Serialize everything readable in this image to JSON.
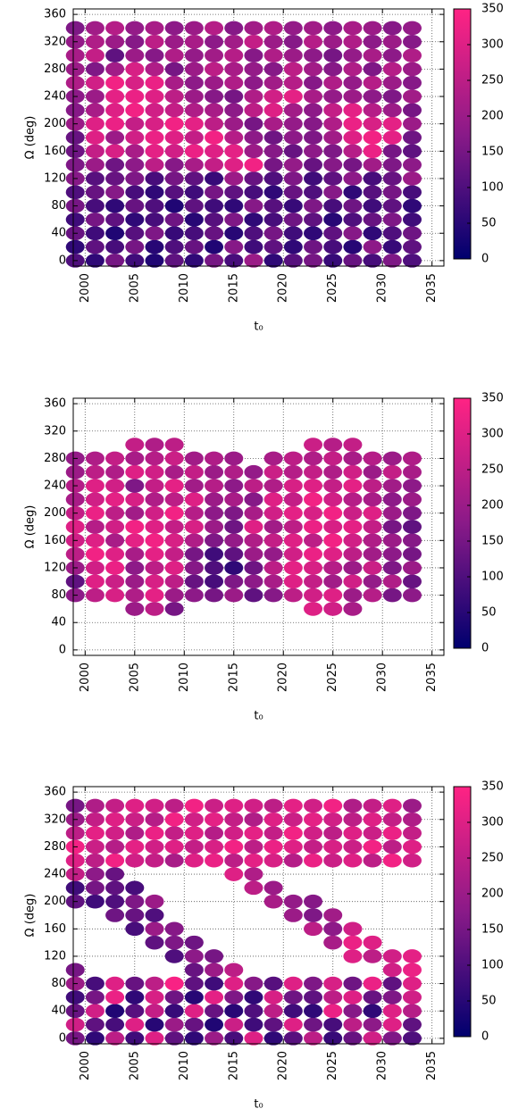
{
  "chart_data": [
    {
      "type": "scatter",
      "xlabel": "t₀",
      "ylabel": "Ω (deg)",
      "grid": true,
      "xlim": [
        1998.8,
        2036.2
      ],
      "ylim": [
        -8,
        368
      ],
      "xticks": [
        2000,
        2005,
        2010,
        2015,
        2020,
        2025,
        2030,
        2035
      ],
      "yticks": [
        0,
        40,
        80,
        120,
        160,
        200,
        240,
        280,
        320,
        360
      ],
      "colorbar": {
        "lim": [
          0,
          350
        ],
        "ticks": [
          0,
          50,
          100,
          150,
          200,
          250,
          300,
          350
        ],
        "colors": [
          "#00006e",
          "#8a1a88",
          "#ff2384"
        ]
      },
      "x": [
        1999,
        2001,
        2003,
        2005,
        2007,
        2009,
        2011,
        2013,
        2015,
        2017,
        2019,
        2021,
        2023,
        2025,
        2027,
        2029,
        2031,
        2033
      ],
      "y": [
        0,
        20,
        40,
        60,
        80,
        100,
        120,
        140,
        160,
        180,
        200,
        220,
        240,
        260,
        280,
        300,
        320,
        340
      ],
      "values": [
        [
          100,
          60,
          150,
          80,
          40,
          120,
          60,
          150,
          90,
          200,
          60,
          110,
          150,
          70,
          130,
          90,
          160,
          100
        ],
        [
          60,
          120,
          90,
          150,
          50,
          100,
          130,
          40,
          170,
          80,
          120,
          60,
          140,
          90,
          50,
          180,
          70,
          120
        ],
        [
          130,
          80,
          40,
          110,
          160,
          70,
          90,
          130,
          50,
          100,
          150,
          80,
          60,
          120,
          170,
          60,
          100,
          140
        ],
        [
          80,
          150,
          120,
          60,
          90,
          140,
          50,
          110,
          160,
          60,
          90,
          140,
          120,
          50,
          100,
          130,
          160,
          80
        ],
        [
          150,
          90,
          60,
          130,
          100,
          40,
          120,
          80,
          60,
          170,
          110,
          70,
          160,
          90,
          140,
          80,
          120,
          60
        ],
        [
          100,
          130,
          170,
          90,
          60,
          110,
          80,
          150,
          120,
          90,
          60,
          130,
          100,
          170,
          60,
          110,
          150,
          90
        ],
        [
          170,
          110,
          130,
          160,
          90,
          150,
          120,
          70,
          200,
          130,
          100,
          160,
          80,
          120,
          180,
          90,
          130,
          200
        ],
        [
          160,
          200,
          140,
          180,
          250,
          170,
          220,
          260,
          300,
          330,
          150,
          190,
          130,
          170,
          150,
          210,
          160,
          180
        ],
        [
          140,
          260,
          290,
          220,
          310,
          280,
          320,
          300,
          310,
          200,
          170,
          130,
          180,
          160,
          240,
          320,
          150,
          120
        ],
        [
          130,
          300,
          200,
          280,
          320,
          300,
          260,
          330,
          240,
          180,
          140,
          180,
          160,
          210,
          300,
          330,
          310,
          140
        ],
        [
          200,
          300,
          320,
          260,
          290,
          330,
          310,
          250,
          200,
          150,
          220,
          190,
          170,
          230,
          320,
          290,
          310,
          200
        ],
        [
          170,
          220,
          300,
          330,
          280,
          260,
          230,
          220,
          180,
          250,
          300,
          210,
          180,
          260,
          310,
          240,
          200,
          150
        ],
        [
          180,
          200,
          310,
          320,
          300,
          250,
          200,
          170,
          150,
          230,
          280,
          310,
          220,
          190,
          200,
          180,
          160,
          210
        ],
        [
          230,
          280,
          330,
          290,
          320,
          220,
          180,
          200,
          230,
          180,
          210,
          240,
          170,
          230,
          190,
          240,
          200,
          170
        ],
        [
          200,
          160,
          210,
          290,
          230,
          150,
          200,
          250,
          220,
          190,
          170,
          250,
          210,
          170,
          230,
          160,
          240,
          200
        ],
        [
          220,
          260,
          120,
          200,
          170,
          230,
          190,
          210,
          240,
          170,
          230,
          200,
          180,
          150,
          190,
          220,
          180,
          230
        ],
        [
          190,
          230,
          200,
          170,
          250,
          200,
          220,
          180,
          210,
          260,
          200,
          170,
          240,
          200,
          230,
          180,
          200,
          170
        ],
        [
          160,
          210,
          240,
          190,
          220,
          180,
          200,
          240,
          170,
          210,
          230,
          190,
          210,
          180,
          220,
          200,
          170,
          190
        ]
      ]
    },
    {
      "type": "scatter",
      "xlabel": "t₀",
      "ylabel": "Ω (deg)",
      "grid": true,
      "xlim": [
        1998.8,
        2036.2
      ],
      "ylim": [
        -8,
        368
      ],
      "xticks": [
        2000,
        2005,
        2010,
        2015,
        2020,
        2025,
        2030,
        2035
      ],
      "yticks": [
        0,
        40,
        80,
        120,
        160,
        200,
        240,
        280,
        320,
        360
      ],
      "colorbar": {
        "lim": [
          0,
          350
        ],
        "ticks": [
          0,
          50,
          100,
          150,
          200,
          250,
          300,
          350
        ],
        "colors": [
          "#00006e",
          "#8a1a88",
          "#ff2384"
        ]
      },
      "x": [
        1999,
        2001,
        2003,
        2005,
        2007,
        2009,
        2011,
        2013,
        2015,
        2017,
        2019,
        2021,
        2023,
        2025,
        2027,
        2029,
        2031,
        2033
      ],
      "y": [
        0,
        20,
        40,
        60,
        80,
        100,
        120,
        140,
        160,
        180,
        200,
        220,
        240,
        260,
        280,
        300,
        320,
        340
      ],
      "values": [
        [
          null,
          null,
          null,
          null,
          null,
          null,
          null,
          null,
          null,
          null,
          null,
          null,
          null,
          null,
          null,
          null,
          null,
          null
        ],
        [
          null,
          null,
          null,
          null,
          null,
          null,
          null,
          null,
          null,
          null,
          null,
          null,
          null,
          null,
          null,
          null,
          null,
          null
        ],
        [
          null,
          null,
          null,
          null,
          null,
          null,
          null,
          null,
          null,
          null,
          null,
          null,
          null,
          null,
          null,
          null,
          null,
          null
        ],
        [
          null,
          null,
          null,
          200,
          250,
          150,
          null,
          null,
          null,
          null,
          null,
          null,
          300,
          280,
          220,
          null,
          null,
          null
        ],
        [
          180,
          250,
          290,
          230,
          310,
          200,
          180,
          150,
          200,
          120,
          170,
          250,
          280,
          300,
          200,
          240,
          150,
          180
        ],
        [
          120,
          300,
          270,
          200,
          290,
          250,
          130,
          90,
          160,
          180,
          220,
          300,
          260,
          210,
          280,
          190,
          230,
          130
        ],
        [
          200,
          280,
          320,
          180,
          250,
          300,
          170,
          100,
          60,
          140,
          250,
          310,
          290,
          240,
          200,
          270,
          160,
          200
        ],
        [
          250,
          330,
          300,
          220,
          310,
          260,
          150,
          80,
          120,
          200,
          190,
          280,
          320,
          300,
          250,
          210,
          180,
          150
        ],
        [
          280,
          300,
          220,
          310,
          330,
          290,
          230,
          160,
          190,
          230,
          260,
          300,
          250,
          330,
          280,
          230,
          200,
          170
        ],
        [
          300,
          240,
          280,
          330,
          300,
          260,
          290,
          200,
          140,
          300,
          210,
          250,
          320,
          290,
          310,
          260,
          150,
          120
        ],
        [
          260,
          320,
          250,
          210,
          280,
          330,
          240,
          180,
          160,
          220,
          280,
          310,
          290,
          330,
          270,
          300,
          200,
          160
        ],
        [
          220,
          280,
          310,
          290,
          230,
          250,
          300,
          200,
          220,
          170,
          300,
          260,
          330,
          280,
          240,
          220,
          180,
          200
        ],
        [
          240,
          300,
          280,
          160,
          260,
          310,
          210,
          240,
          180,
          250,
          230,
          290,
          300,
          260,
          310,
          250,
          210,
          180
        ],
        [
          200,
          250,
          230,
          300,
          280,
          220,
          260,
          200,
          230,
          190,
          270,
          240,
          260,
          230,
          280,
          200,
          260,
          220
        ],
        [
          190,
          230,
          260,
          220,
          240,
          270,
          210,
          230,
          200,
          null,
          220,
          250,
          230,
          260,
          220,
          240,
          200,
          230
        ],
        [
          null,
          null,
          null,
          260,
          230,
          250,
          null,
          null,
          null,
          null,
          null,
          null,
          270,
          240,
          260,
          null,
          null,
          null
        ],
        [
          null,
          null,
          null,
          null,
          null,
          null,
          null,
          null,
          null,
          null,
          null,
          null,
          null,
          null,
          null,
          null,
          null,
          null
        ],
        [
          null,
          null,
          null,
          null,
          null,
          null,
          null,
          null,
          null,
          null,
          null,
          null,
          null,
          null,
          null,
          null,
          null,
          null
        ]
      ]
    },
    {
      "type": "scatter",
      "xlabel": "t₀",
      "ylabel": "Ω (deg)",
      "grid": true,
      "xlim": [
        1998.8,
        2036.2
      ],
      "ylim": [
        -8,
        368
      ],
      "xticks": [
        2000,
        2005,
        2010,
        2015,
        2020,
        2025,
        2030,
        2035
      ],
      "yticks": [
        0,
        40,
        80,
        120,
        160,
        200,
        240,
        280,
        320,
        360
      ],
      "colorbar": {
        "lim": [
          0,
          350
        ],
        "ticks": [
          0,
          50,
          100,
          150,
          200,
          250,
          300,
          350
        ],
        "colors": [
          "#00006e",
          "#8a1a88",
          "#ff2384"
        ]
      },
      "x": [
        1999,
        2001,
        2003,
        2005,
        2007,
        2009,
        2011,
        2013,
        2015,
        2017,
        2019,
        2021,
        2023,
        2025,
        2027,
        2029,
        2031,
        2033
      ],
      "y": [
        0,
        20,
        40,
        60,
        80,
        100,
        120,
        140,
        160,
        180,
        200,
        220,
        240,
        260,
        280,
        300,
        320,
        340
      ],
      "values": [
        [
          150,
          60,
          250,
          80,
          300,
          120,
          60,
          200,
          90,
          300,
          60,
          110,
          250,
          70,
          130,
          280,
          160,
          100
        ],
        [
          280,
          120,
          90,
          300,
          50,
          200,
          130,
          40,
          270,
          80,
          120,
          300,
          140,
          90,
          250,
          180,
          300,
          120
        ],
        [
          130,
          280,
          40,
          110,
          260,
          70,
          300,
          130,
          50,
          100,
          250,
          80,
          60,
          320,
          170,
          60,
          300,
          240
        ],
        [
          80,
          150,
          320,
          60,
          290,
          140,
          50,
          310,
          160,
          60,
          290,
          140,
          120,
          250,
          300,
          130,
          160,
          280
        ],
        [
          200,
          90,
          300,
          130,
          250,
          340,
          120,
          80,
          300,
          170,
          110,
          300,
          160,
          290,
          140,
          320,
          120,
          300
        ],
        [
          150,
          null,
          null,
          null,
          null,
          null,
          130,
          200,
          250,
          null,
          null,
          null,
          null,
          null,
          null,
          null,
          280,
          320
        ],
        [
          null,
          null,
          null,
          null,
          null,
          100,
          180,
          150,
          null,
          null,
          null,
          null,
          null,
          null,
          300,
          250,
          280,
          310
        ],
        [
          null,
          null,
          null,
          null,
          120,
          160,
          140,
          null,
          null,
          null,
          null,
          null,
          null,
          220,
          320,
          300,
          null,
          null
        ],
        [
          null,
          null,
          null,
          90,
          200,
          170,
          null,
          null,
          null,
          null,
          null,
          null,
          250,
          180,
          280,
          null,
          null,
          null
        ],
        [
          null,
          null,
          140,
          130,
          100,
          null,
          null,
          null,
          null,
          null,
          null,
          200,
          160,
          210,
          null,
          null,
          null,
          null
        ],
        [
          120,
          80,
          100,
          160,
          200,
          null,
          null,
          null,
          null,
          null,
          220,
          190,
          170,
          null,
          null,
          null,
          null,
          null
        ],
        [
          80,
          150,
          120,
          90,
          null,
          null,
          null,
          null,
          null,
          250,
          200,
          null,
          null,
          null,
          null,
          null,
          null,
          null
        ],
        [
          260,
          180,
          130,
          null,
          null,
          null,
          null,
          null,
          300,
          230,
          null,
          null,
          null,
          null,
          null,
          null,
          null,
          null
        ],
        [
          300,
          250,
          330,
          280,
          260,
          220,
          300,
          320,
          250,
          310,
          290,
          240,
          320,
          270,
          300,
          250,
          330,
          280
        ],
        [
          330,
          270,
          240,
          310,
          280,
          300,
          260,
          290,
          330,
          250,
          320,
          300,
          260,
          290,
          270,
          330,
          250,
          300
        ],
        [
          250,
          310,
          280,
          230,
          320,
          260,
          300,
          240,
          280,
          310,
          260,
          330,
          280,
          250,
          300,
          270,
          320,
          260
        ],
        [
          200,
          260,
          300,
          270,
          240,
          330,
          280,
          310,
          260,
          230,
          300,
          270,
          310,
          280,
          250,
          300,
          260,
          230
        ],
        [
          150,
          230,
          260,
          300,
          280,
          250,
          330,
          270,
          300,
          280,
          250,
          310,
          280,
          330,
          230,
          260,
          300,
          200
        ]
      ]
    }
  ]
}
